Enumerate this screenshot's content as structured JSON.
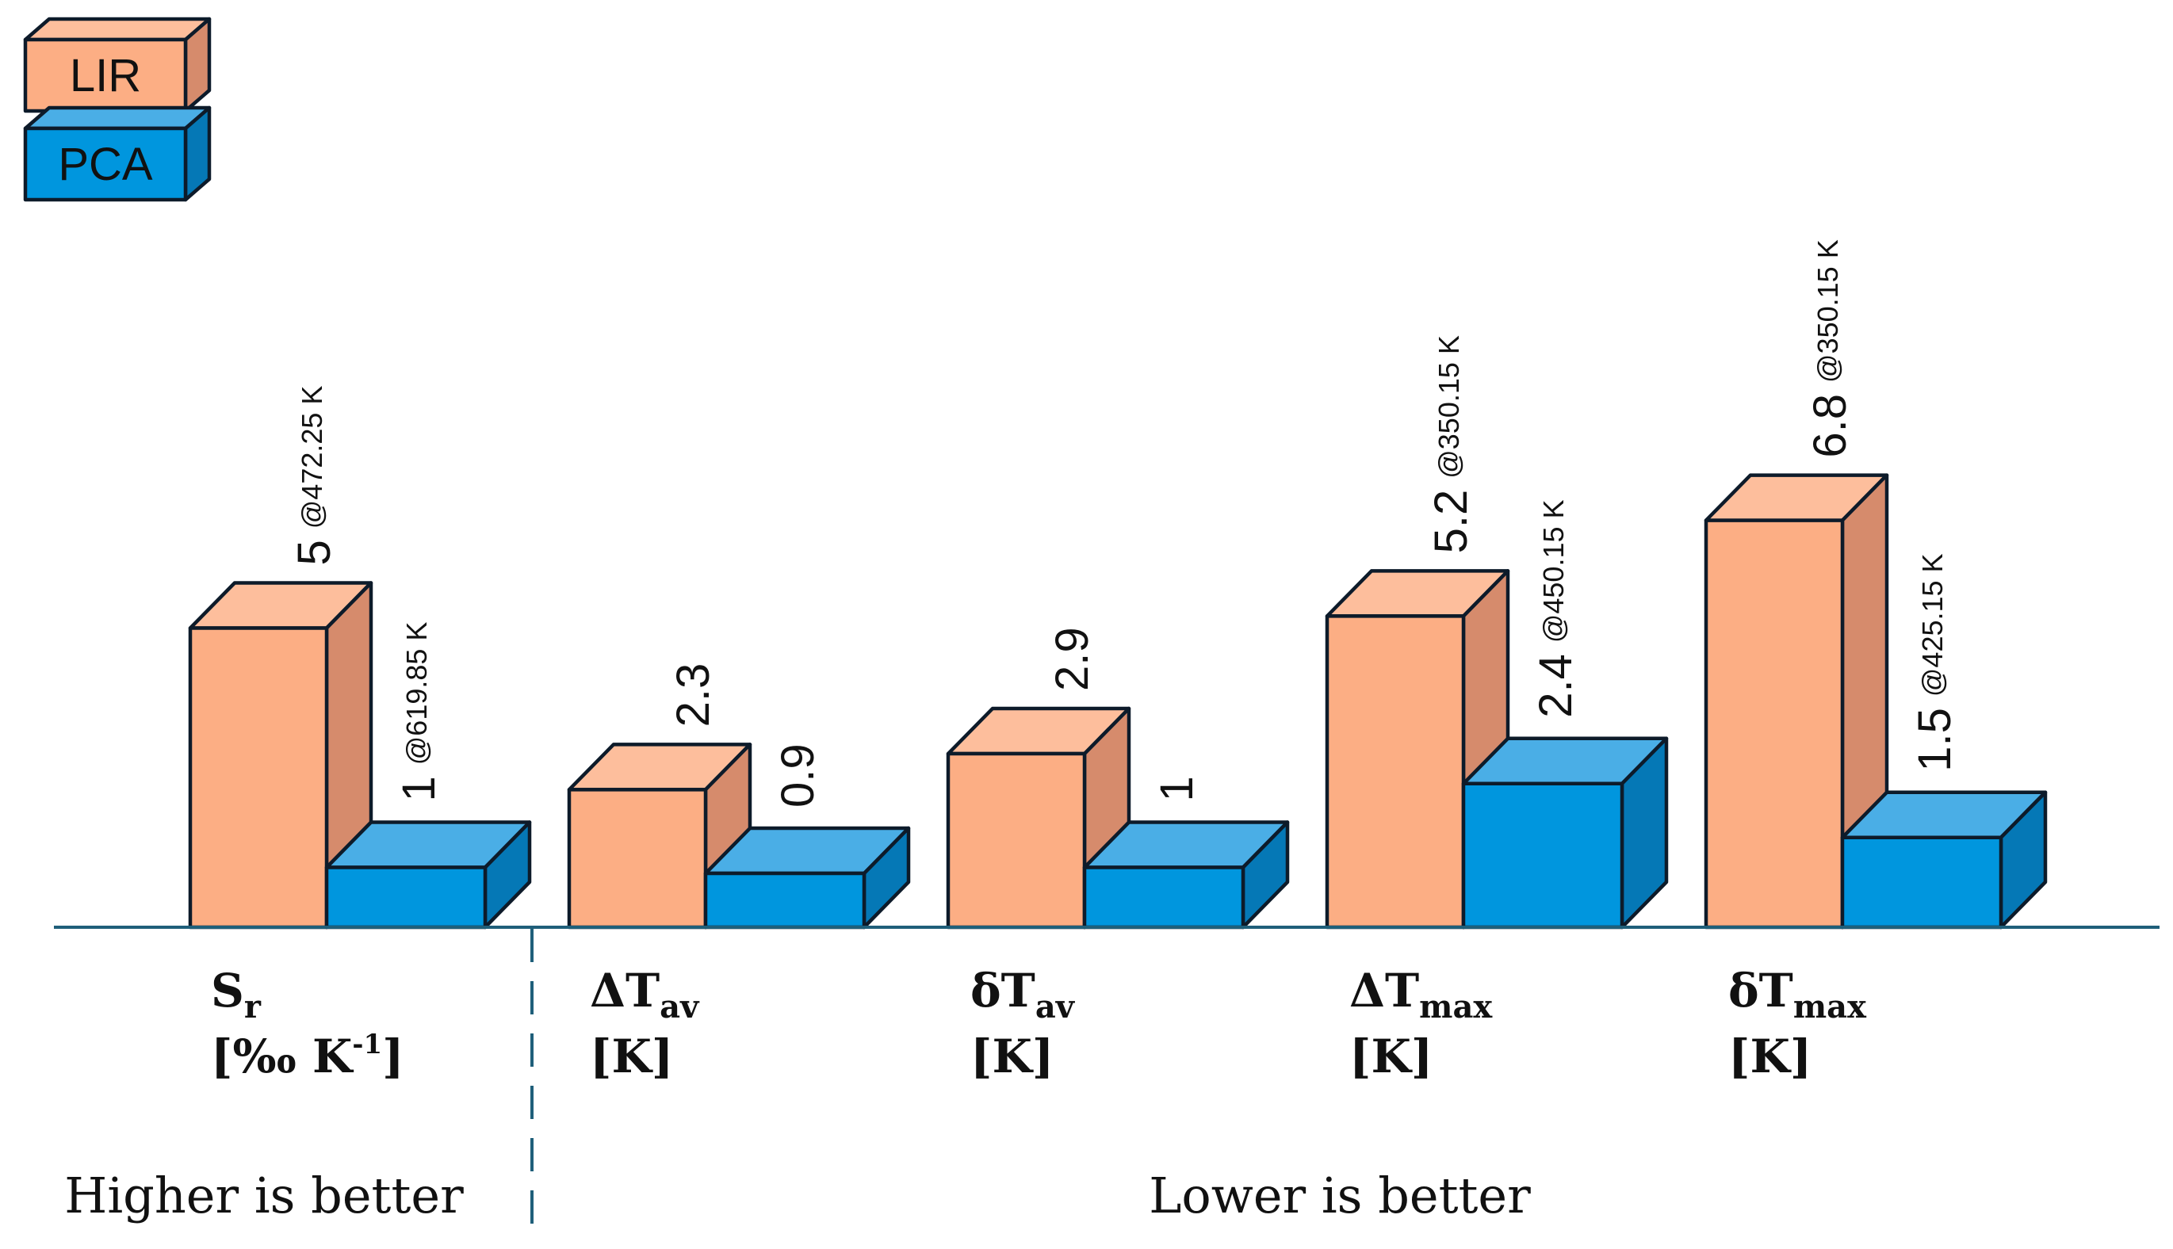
{
  "chart_data": {
    "type": "bar",
    "style": "3d-grouped",
    "title": "",
    "xlabel": "",
    "ylabel": "",
    "ylim": [
      0,
      7.5
    ],
    "grid": false,
    "legend_position": "top-left",
    "categories": [
      {
        "main": "S",
        "sub": "r",
        "unit_prefix": "[‰ K",
        "unit_sup": "-1",
        "unit_suffix": "]"
      },
      {
        "main": "ΔT",
        "sub": "av",
        "unit_prefix": "[K]",
        "unit_sup": "",
        "unit_suffix": ""
      },
      {
        "main": "δT",
        "sub": "av",
        "unit_prefix": "[K]",
        "unit_sup": "",
        "unit_suffix": ""
      },
      {
        "main": "ΔT",
        "sub": "max",
        "unit_prefix": "[K]",
        "unit_sup": "",
        "unit_suffix": ""
      },
      {
        "main": "δT",
        "sub": "max",
        "unit_prefix": "[K]",
        "unit_sup": "",
        "unit_suffix": ""
      }
    ],
    "series": [
      {
        "name": "LIR",
        "color": "#FCAE84",
        "side_color": "#D68B6C",
        "top_color": "#FDBE9C",
        "values": [
          5,
          2.3,
          2.9,
          5.2,
          6.8
        ],
        "value_labels": [
          "5",
          "2.3",
          "2.9",
          "5.2",
          "6.8"
        ],
        "notes": [
          "@472.25 K",
          "",
          "",
          "@350.15 K",
          "@350.15 K"
        ]
      },
      {
        "name": "PCA",
        "color": "#0096DE",
        "side_color": "#0578B6",
        "top_color": "#4AAEE6",
        "values": [
          1,
          0.9,
          1,
          2.4,
          1.5
        ],
        "value_labels": [
          "1",
          "0.9",
          "1",
          "2.4",
          "1.5"
        ],
        "notes": [
          "@619.85 K",
          "",
          "",
          "@450.15 K",
          "@425.15 K"
        ]
      }
    ],
    "annotations": {
      "left_region": "Higher is better",
      "right_region": "Lower is better"
    }
  }
}
